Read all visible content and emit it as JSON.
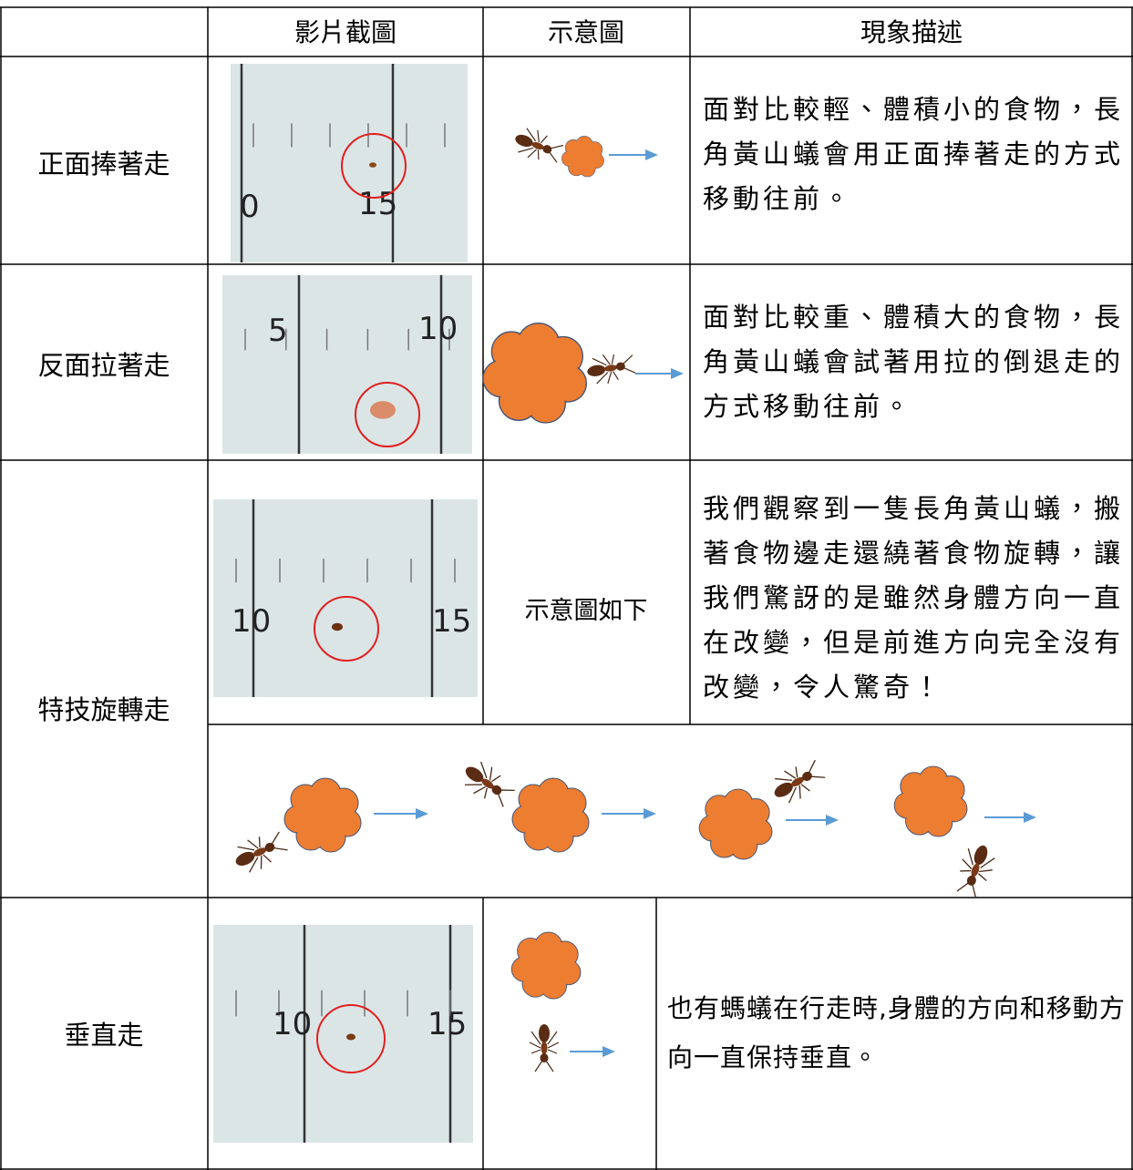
{
  "header": {
    "photo": "影片截圖",
    "diagram": "示意圖",
    "description": "現象描述"
  },
  "rows": [
    {
      "label": "正面捧著走",
      "description": "面對比較輕、體積小的食物，長角黃山蟻會用正面捧著走的方式移動往前。",
      "photo_marks": [
        "0",
        "15"
      ]
    },
    {
      "label": "反面拉著走",
      "description": "面對比較重、體積大的食物，長角黃山蟻會試著用拉的倒退走的方式移動往前。",
      "photo_marks": [
        "5",
        "10"
      ]
    },
    {
      "label": "特技旋轉走",
      "diagram_note": "示意圖如下",
      "description": "我們觀察到一隻長角黃山蟻，搬著食物邊走還繞著食物旋轉，讓我們驚訝的是雖然身體方向一直在改變，但是前進方向完全沒有改變，令人驚奇！",
      "photo_marks": [
        "10",
        "15"
      ]
    },
    {
      "label": "垂直走",
      "description": "也有螞蟻在行走時,身體的方向和移動方向一直保持垂直。",
      "photo_marks": [
        "10",
        "15"
      ]
    }
  ]
}
